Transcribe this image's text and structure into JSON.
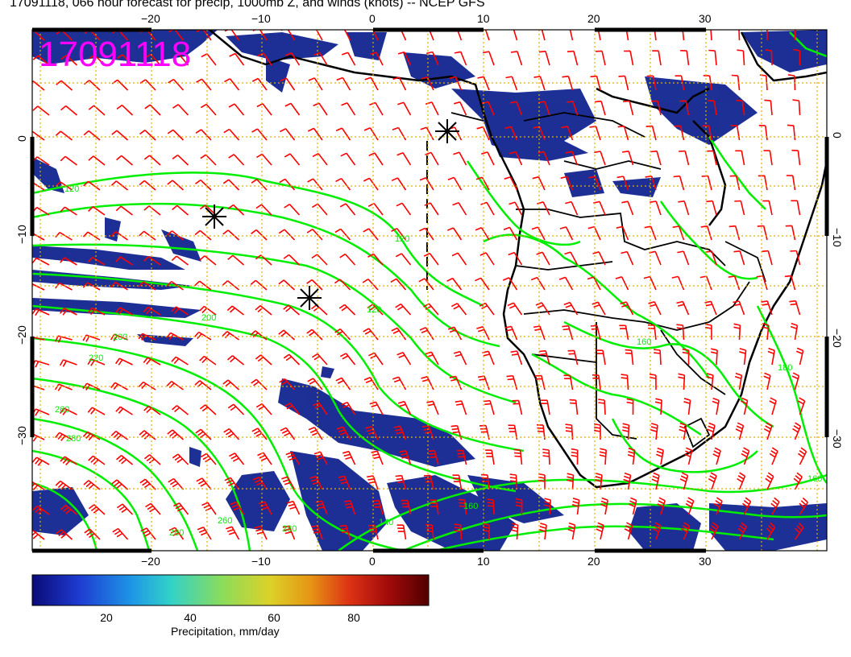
{
  "title": "17091118, 066 hour forecast for precip, 1000mb Z, and winds (knots) -- NCEP GFS",
  "timestamp_stamp": "17091118",
  "axes": {
    "lon_ticks": [
      "−20",
      "−10",
      "0",
      "10",
      "20",
      "30"
    ],
    "lat_ticks": [
      "0",
      "−10",
      "−20",
      "−30"
    ]
  },
  "contour_labels": [
    "120",
    "120",
    "120",
    "200",
    "200",
    "220",
    "260",
    "280",
    "280",
    "160",
    "140",
    "160",
    "180",
    "160",
    "280",
    "260"
  ],
  "colorbar": {
    "title": "Precipitation, mm/day",
    "ticks": [
      "20",
      "40",
      "60",
      "80"
    ],
    "range": [
      0,
      100
    ],
    "colors": [
      "#0a0a78",
      "#1e3cd2",
      "#1e96e6",
      "#32d2c8",
      "#8cdc5a",
      "#dcd228",
      "#e69614",
      "#dc3214",
      "#a00a0a",
      "#500000"
    ]
  },
  "colors": {
    "wind_barbs": "#ff0000",
    "contours": "#00ee00",
    "precip": "#0a1e8c",
    "stamp": "#ff00ff",
    "grid": "#e0b000"
  },
  "markers": [
    "asterisk",
    "asterisk",
    "asterisk"
  ]
}
